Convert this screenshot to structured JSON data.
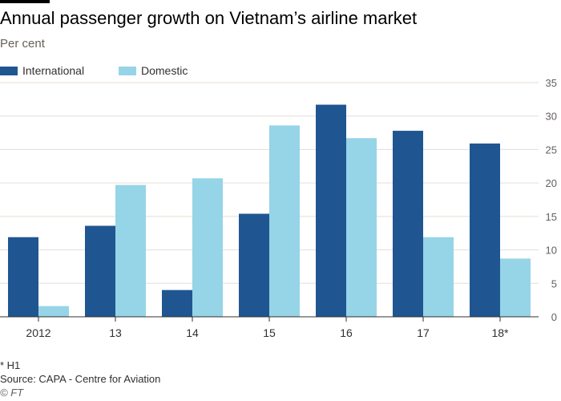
{
  "header": {
    "title": "Annual passenger growth on Vietnam’s airline market",
    "subtitle": "Per cent"
  },
  "legend": [
    {
      "name": "International",
      "color": "#1f5691"
    },
    {
      "name": "Domestic",
      "color": "#96d4e8"
    }
  ],
  "chart_data": {
    "type": "bar",
    "title": "Annual passenger growth on Vietnam’s airline market",
    "ylabel": "Per cent",
    "xlabel": "",
    "categories": [
      "2012",
      "13",
      "14",
      "15",
      "16",
      "17",
      "18*"
    ],
    "series": [
      {
        "name": "International",
        "color": "#1f5691",
        "values": [
          11.9,
          13.6,
          4.0,
          15.4,
          31.7,
          27.8,
          25.9
        ]
      },
      {
        "name": "Domestic",
        "color": "#96d4e8",
        "values": [
          1.6,
          19.7,
          20.7,
          28.6,
          26.7,
          11.9,
          8.7
        ]
      }
    ],
    "ylim": [
      0,
      35
    ],
    "yticks": [
      0,
      5,
      10,
      15,
      20,
      25,
      30,
      35
    ],
    "grid": true,
    "legend_position": "top-left"
  },
  "footer": {
    "note": "* H1",
    "source": "Source: CAPA - Centre for Aviation",
    "credit": "© FT"
  }
}
